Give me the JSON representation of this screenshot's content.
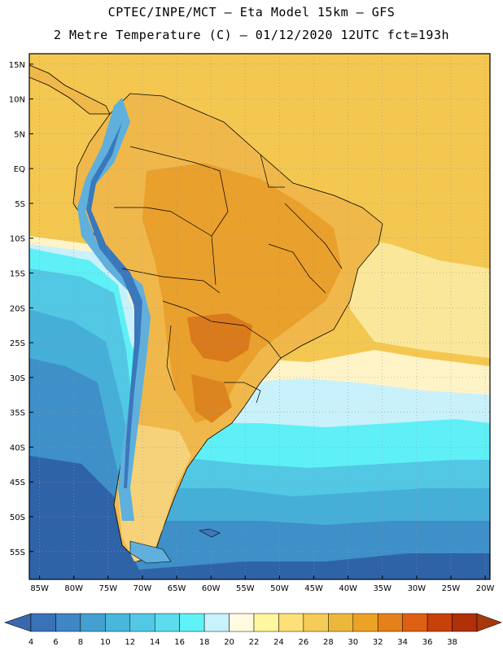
{
  "title": {
    "line1": "CPTEC/INPE/MCT –  Eta Model 15km – GFS",
    "line2": "2 Metre Temperature (C) – 01/12/2020 12UTC fct=193h"
  },
  "map": {
    "lat_labels": [
      "15N",
      "10N",
      "5N",
      "EQ",
      "5S",
      "10S",
      "15S",
      "20S",
      "25S",
      "30S",
      "35S",
      "40S",
      "45S",
      "50S",
      "55S"
    ],
    "lon_labels": [
      "85W",
      "80W",
      "75W",
      "70W",
      "65W",
      "60W",
      "55W",
      "50W",
      "45W",
      "40W",
      "35W",
      "30W",
      "25W",
      "20W"
    ],
    "lat_values": [
      15,
      10,
      5,
      0,
      -5,
      -10,
      -15,
      -20,
      -25,
      -30,
      -35,
      -40,
      -45,
      -50,
      -55
    ],
    "lon_values": [
      -85,
      -80,
      -75,
      -70,
      -65,
      -60,
      -55,
      -50,
      -45,
      -40,
      -35,
      -30,
      -25,
      -20
    ],
    "region": "South America",
    "gridlines": "dotted"
  },
  "colorbar": {
    "labels": [
      "4",
      "6",
      "8",
      "10",
      "12",
      "14",
      "16",
      "18",
      "20",
      "22",
      "24",
      "26",
      "28",
      "30",
      "32",
      "34",
      "36",
      "38"
    ],
    "colors": [
      "#3a72b8",
      "#3f86c4",
      "#44a0d0",
      "#49b6dc",
      "#52c8e4",
      "#5cdcec",
      "#5ff2f6",
      "#c8f2fc",
      "#fffae0",
      "#fff6a0",
      "#fde078",
      "#f5cc58",
      "#ecb83c",
      "#eca224",
      "#e6801a",
      "#df6012",
      "#c8400a",
      "#b03008"
    ]
  }
}
